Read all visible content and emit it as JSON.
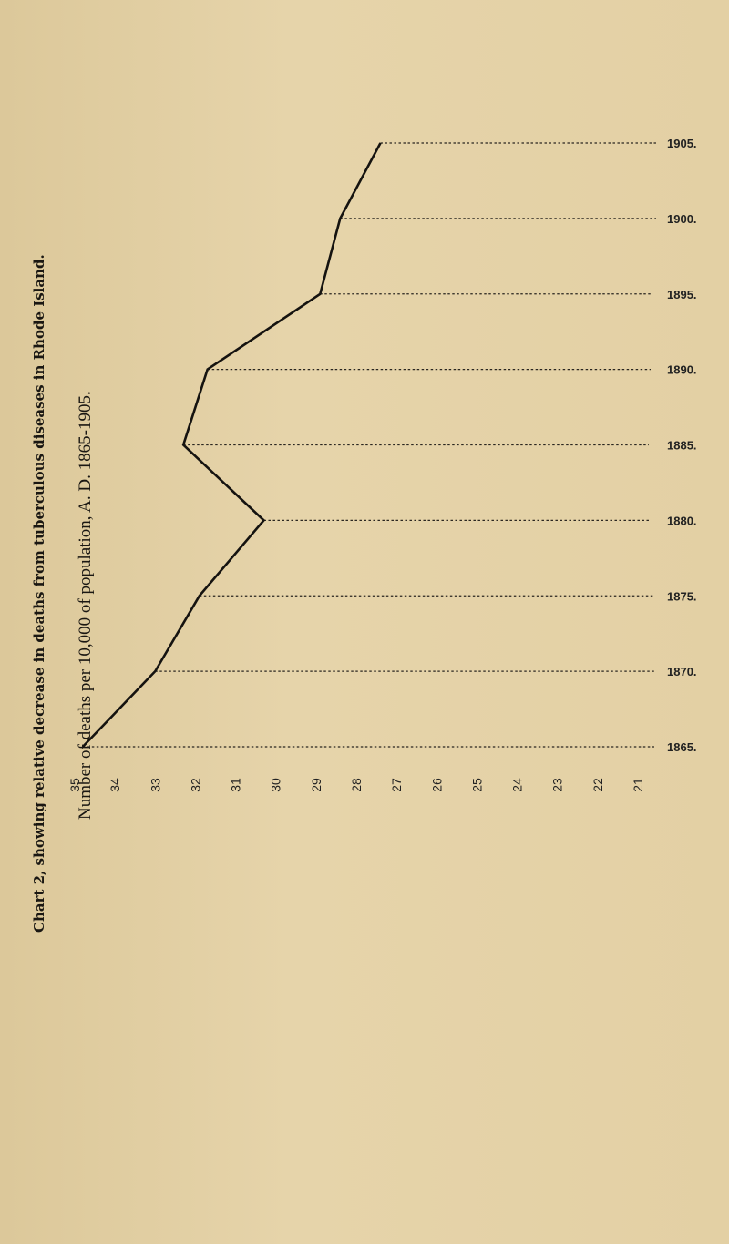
{
  "chart_data": {
    "type": "line",
    "title": "Chart 2, showing relative decrease in deaths from tuberculous diseases in Rhode Island.",
    "subtitle": "Number of deaths per 10,000 of population, A. D. 1865-1905.",
    "x_ticks": [
      "35",
      "34",
      "33",
      "32",
      "31",
      "30",
      "29",
      "28",
      "27",
      "26",
      "25",
      "24",
      "23",
      "22",
      "21"
    ],
    "xlim": [
      35,
      21
    ],
    "years": [
      "1865.",
      "1870.",
      "1875.",
      "1880.",
      "1885.",
      "1890.",
      "1895.",
      "1900.",
      "1905."
    ],
    "ylim": [
      1865,
      1905
    ],
    "series": [
      {
        "points": [
          {
            "year": 1865,
            "rate": 34.8
          },
          {
            "year": 1870,
            "rate": 33.0
          },
          {
            "year": 1875,
            "rate": 31.9
          },
          {
            "year": 1880,
            "rate": 30.3
          },
          {
            "year": 1885,
            "rate": 32.3
          },
          {
            "year": 1890,
            "rate": 31.7
          },
          {
            "year": 1895,
            "rate": 28.9
          },
          {
            "year": 1900,
            "rate": 28.4
          },
          {
            "year": 1905,
            "rate": 27.4
          }
        ]
      }
    ],
    "colors": {
      "line": "#151310",
      "guide": "#2a2620"
    }
  }
}
